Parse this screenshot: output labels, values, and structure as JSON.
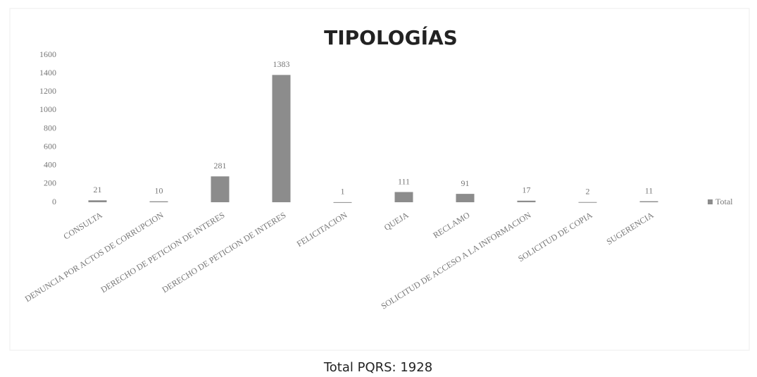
{
  "chart_data": {
    "type": "bar",
    "title": "TIPOLOGÍAS",
    "categories": [
      "CONSULTA",
      "DENUNCIA POR ACTOS DE CORRUPCION",
      "DERECHO DE PETICION DE INTERES",
      "DERECHO DE PETICION DE INTERES",
      "FELICITACION",
      "QUEJA",
      "RECLAMO",
      "SOLICITUD DE ACCESO A LA INFORMACION",
      "SOLICITUD DE COPIA",
      "SUGERENCIA"
    ],
    "series": [
      {
        "name": "Total",
        "color": "#8c8c8c",
        "values": [
          21,
          10,
          281,
          1383,
          1,
          111,
          91,
          17,
          2,
          11
        ]
      }
    ],
    "ylim": [
      0,
      1600
    ],
    "yticks": [
      0,
      200,
      400,
      600,
      800,
      1000,
      1200,
      1400,
      1600
    ],
    "grid": false,
    "legend": "right",
    "note": "Total PQRS: 1928"
  }
}
